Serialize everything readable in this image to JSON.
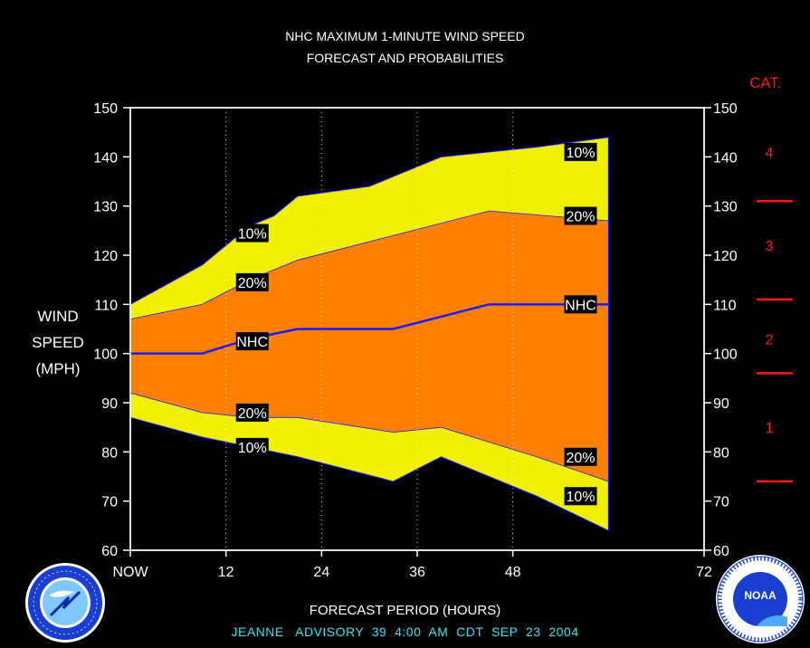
{
  "header": {
    "title_line1": "NHC MAXIMUM 1-MINUTE WIND SPEED",
    "title_line2": "FORECAST AND PROBABILITIES"
  },
  "axis": {
    "ylabel_line1": "WIND",
    "ylabel_line2": "SPEED",
    "ylabel_line3": "(MPH)",
    "xlabel": "FORECAST PERIOD (HOURS)",
    "cat_label": "CAT."
  },
  "footer": {
    "advisory": "JEANNE   ADVISORY  39  4:00  AM  CDT  SEP  23  2004"
  },
  "colors": {
    "outer_band": "#f0f000",
    "inner_band": "#ff8000",
    "nhc_line": "#1a1aff",
    "category_marks": "#ff1a1a",
    "footer_text": "#3ee0e8"
  },
  "logos": {
    "left": "national-weather-service-logo",
    "right": "noaa-logo",
    "left_text": "NATIONAL WEATHER SERVICE",
    "right_text": "NATIONAL OCEANIC AND ATMOSPHERIC ADMINISTRATION U.S. DEPARTMENT OF COMMERCE",
    "right_center": "NOAA"
  },
  "chart_data": {
    "type": "area",
    "x_ticks": [
      0,
      12,
      24,
      36,
      48,
      72
    ],
    "x_tick_labels": [
      "NOW",
      "12",
      "24",
      "36",
      "48",
      "72"
    ],
    "xlim": [
      0,
      72
    ],
    "ylim": [
      60,
      150
    ],
    "y_ticks": [
      60,
      70,
      80,
      90,
      100,
      110,
      120,
      130,
      140,
      150
    ],
    "vertical_grid_at": [
      12,
      24,
      36,
      48
    ],
    "series": [
      {
        "name": "10%",
        "upper": [
          [
            0,
            110
          ],
          [
            9,
            118
          ],
          [
            15,
            126
          ],
          [
            18,
            128
          ],
          [
            21,
            132
          ],
          [
            30,
            134
          ],
          [
            39,
            140
          ],
          [
            51,
            142
          ],
          [
            60,
            144
          ]
        ],
        "lower": [
          [
            0,
            87
          ],
          [
            9,
            83
          ],
          [
            15,
            81
          ],
          [
            21,
            79
          ],
          [
            33,
            74
          ],
          [
            39,
            79
          ],
          [
            51,
            71
          ],
          [
            60,
            64
          ]
        ]
      },
      {
        "name": "20%",
        "upper": [
          [
            0,
            107
          ],
          [
            9,
            110
          ],
          [
            15,
            115
          ],
          [
            21,
            119
          ],
          [
            33,
            124
          ],
          [
            45,
            129
          ],
          [
            60,
            127
          ]
        ],
        "lower": [
          [
            0,
            92
          ],
          [
            9,
            88
          ],
          [
            15,
            87
          ],
          [
            21,
            87
          ],
          [
            33,
            84
          ],
          [
            39,
            85
          ],
          [
            51,
            79
          ],
          [
            60,
            74
          ]
        ]
      },
      {
        "name": "NHC",
        "values": [
          [
            0,
            100
          ],
          [
            9,
            100
          ],
          [
            15,
            103
          ],
          [
            21,
            105
          ],
          [
            33,
            105
          ],
          [
            45,
            110
          ],
          [
            60,
            110
          ]
        ]
      }
    ],
    "band_labels": [
      {
        "text": "10%",
        "x": 15.3,
        "y": 124.5
      },
      {
        "text": "20%",
        "x": 15.3,
        "y": 114.5
      },
      {
        "text": "NHC",
        "x": 15.3,
        "y": 102.5
      },
      {
        "text": "20%",
        "x": 15.3,
        "y": 88
      },
      {
        "text": "10%",
        "x": 15.3,
        "y": 81
      },
      {
        "text": "10%",
        "x": 56.5,
        "y": 141
      },
      {
        "text": "20%",
        "x": 56.5,
        "y": 128
      },
      {
        "text": "NHC",
        "x": 56.5,
        "y": 110
      },
      {
        "text": "20%",
        "x": 56.5,
        "y": 79
      },
      {
        "text": "10%",
        "x": 56.5,
        "y": 71
      }
    ],
    "categories": [
      {
        "label": "4",
        "value_center": 141
      },
      {
        "label": "3",
        "value_center": 122
      },
      {
        "label": "2",
        "value_center": 103
      },
      {
        "label": "1",
        "value_center": 85
      }
    ],
    "category_thresholds": [
      74,
      96,
      111,
      131
    ]
  }
}
